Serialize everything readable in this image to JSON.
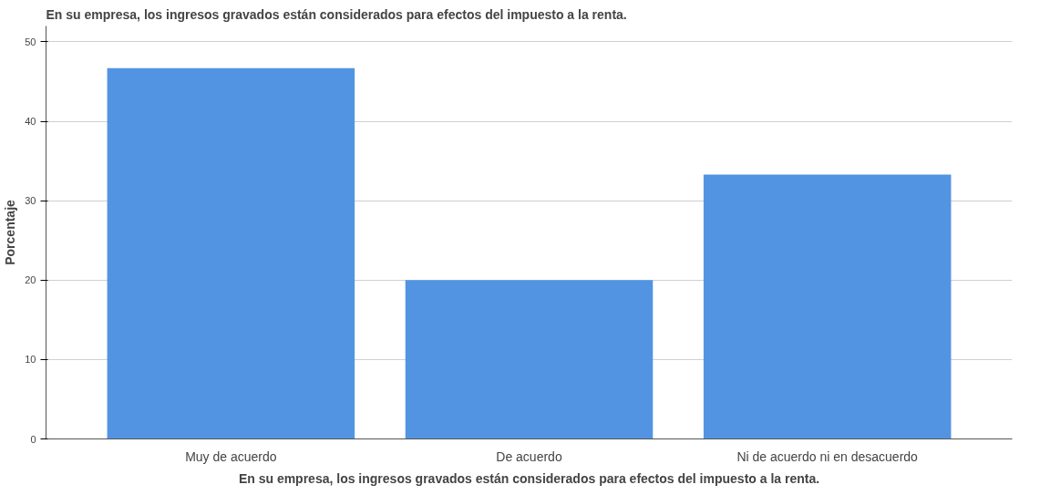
{
  "chart_data": {
    "type": "bar",
    "title": "En su empresa, los ingresos gravados están considerados para efectos del impuesto a la renta.",
    "xlabel": "En su empresa, los ingresos gravados están considerados para efectos del impuesto a la renta.",
    "ylabel": "Porcentaje",
    "categories": [
      "Muy de acuerdo",
      "De acuerdo",
      "Ni de acuerdo ni en desacuerdo"
    ],
    "values": [
      46.7,
      20.0,
      33.3
    ],
    "color": "#5294e2",
    "ylim": [
      0,
      52
    ],
    "yticks": [
      0,
      10,
      20,
      30,
      40,
      50
    ],
    "grid": "y"
  }
}
